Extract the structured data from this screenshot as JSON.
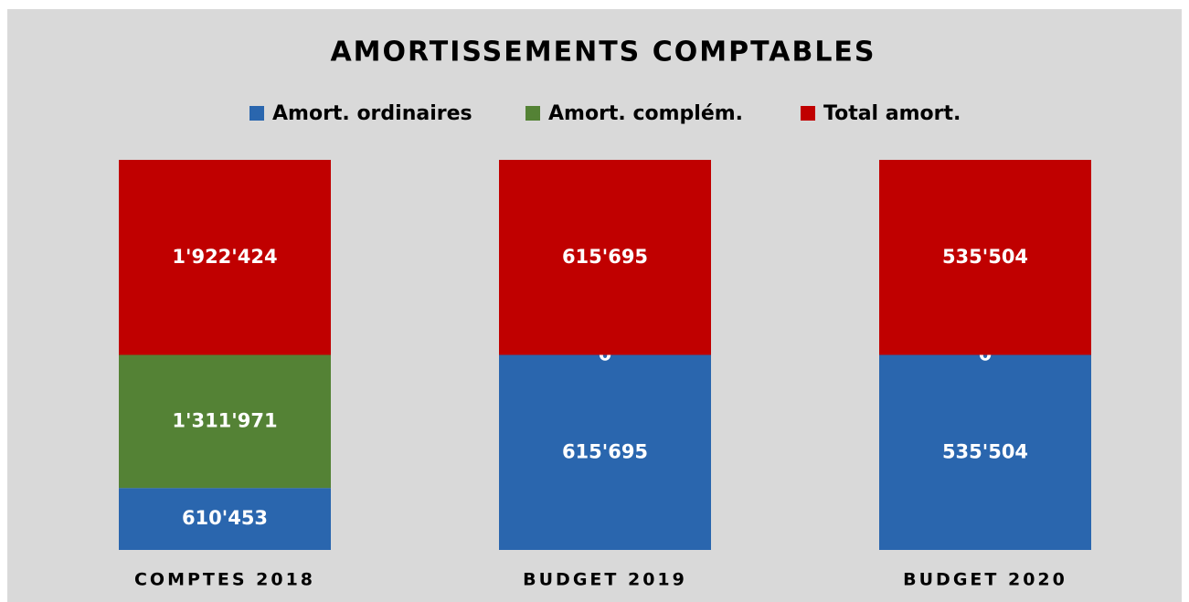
{
  "chart_data": {
    "type": "bar",
    "stacking": "percent",
    "title": "AMORTISSEMENTS  COMPTABLES",
    "categories": [
      "COMPTES 2018",
      "BUDGET 2019",
      "BUDGET 2020"
    ],
    "series": [
      {
        "name": "Amort. ordinaires",
        "color": "#2a66ae",
        "values": [
          610453,
          615695,
          535504
        ],
        "value_labels": [
          "610'453",
          "615'695",
          "535'504"
        ]
      },
      {
        "name": "Amort. complém.",
        "color": "#548235",
        "values": [
          1311971,
          0,
          0
        ],
        "value_labels": [
          "1'311'971",
          "0",
          "0"
        ]
      },
      {
        "name": "Total amort.",
        "color": "#c00000",
        "values": [
          1922424,
          615695,
          535504
        ],
        "value_labels": [
          "1'922'424",
          "615'695",
          "535'504"
        ]
      }
    ],
    "legend": "top"
  }
}
